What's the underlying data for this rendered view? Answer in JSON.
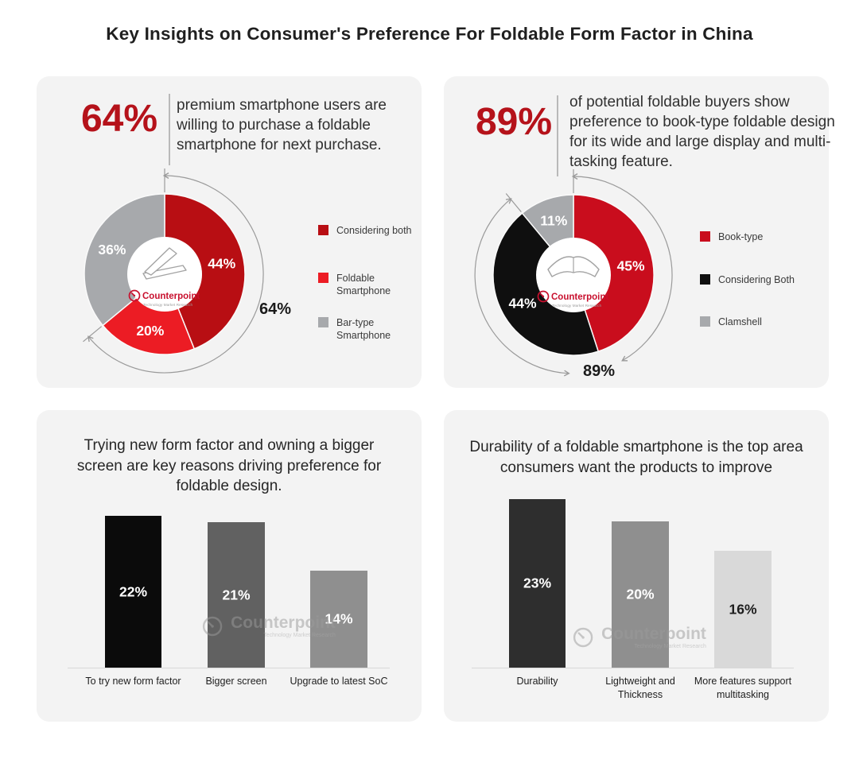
{
  "page": {
    "title": "Key Insights on Consumer's Preference For Foldable Form Factor in China"
  },
  "branding": {
    "logo_text": "Counterpoint",
    "tagline": "Technology Market Research"
  },
  "colors": {
    "accent_red": "#b5121a",
    "card_bg": "#f3f3f3",
    "arc_gray": "#9a9a9a",
    "title_text": "#1f1f1f"
  },
  "cards": {
    "purchase_intent": {
      "stat": "64%",
      "description": "premium smartphone users are willing to purchase a foldable smartphone for next purchase."
    },
    "design_preference": {
      "stat": "89%",
      "description": "of potential foldable buyers show preference to book-type foldable design for its wide and large display and multi-tasking feature."
    },
    "reasons": {
      "title": "Trying new form factor and owning a bigger screen are key reasons driving preference for foldable design."
    },
    "improvements": {
      "title": "Durability of a foldable smartphone is the top area consumers want the products to improve"
    }
  },
  "chart_data": [
    {
      "id": "donut-purchase-intent",
      "type": "pie",
      "donut": true,
      "title": "64% premium smartphone users are willing to purchase a foldable smartphone for next purchase.",
      "slices": [
        {
          "label": "Considering both",
          "value": 44,
          "color": "#b80e13",
          "label_color": "#ffffff"
        },
        {
          "label": "Foldable Smartphone",
          "value": 20,
          "color": "#ec1c24",
          "label_color": "#ffffff"
        },
        {
          "label": "Bar-type Smartphone",
          "value": 36,
          "color": "#a7a9ac",
          "label_color": "#ffffff"
        }
      ],
      "annotation": {
        "label": "64%",
        "span_pct": 64
      },
      "legend_position": "right",
      "center_icon": "clamshell-phone"
    },
    {
      "id": "donut-design-preference",
      "type": "pie",
      "donut": true,
      "title": "89% of potential foldable buyers show preference to book-type foldable design for its wide and large display and multi-tasking feature.",
      "slices": [
        {
          "label": "Book-type",
          "value": 45,
          "color": "#c90d1d",
          "label_color": "#ffffff"
        },
        {
          "label": "Considering Both",
          "value": 44,
          "color": "#0f0f0f",
          "label_color": "#ffffff"
        },
        {
          "label": "Clamshell",
          "value": 11,
          "color": "#a7a9ac",
          "label_color": "#ffffff"
        }
      ],
      "annotation": {
        "label": "89%",
        "span_pct": 89
      },
      "legend_position": "right",
      "center_icon": "book-type-phone"
    },
    {
      "id": "bar-reasons",
      "type": "bar",
      "title": "Trying new form factor and owning a bigger screen are key reasons driving preference for foldable design.",
      "categories": [
        "To try new form factor",
        "Bigger screen",
        "Upgrade to latest SoC"
      ],
      "values": [
        22,
        21,
        14
      ],
      "bar_colors": [
        "#0b0b0b",
        "#616161",
        "#8f8f8f"
      ],
      "value_label_colors": [
        "#ffffff",
        "#ffffff",
        "#ffffff"
      ],
      "xlabel": "",
      "ylabel": "",
      "ylim": [
        0,
        25
      ],
      "grid": false
    },
    {
      "id": "bar-improvements",
      "type": "bar",
      "title": "Durability of a foldable smartphone is the top area consumers want the products to improve",
      "categories": [
        "Durability",
        "Lightweight and Thickness",
        "More features support multitasking"
      ],
      "values": [
        23,
        20,
        16
      ],
      "bar_colors": [
        "#2e2e2e",
        "#8f8f8f",
        "#d9d9d9"
      ],
      "value_label_colors": [
        "#ffffff",
        "#ffffff",
        "#1d1d1d"
      ],
      "xlabel": "",
      "ylabel": "",
      "ylim": [
        0,
        25
      ],
      "grid": false
    }
  ]
}
